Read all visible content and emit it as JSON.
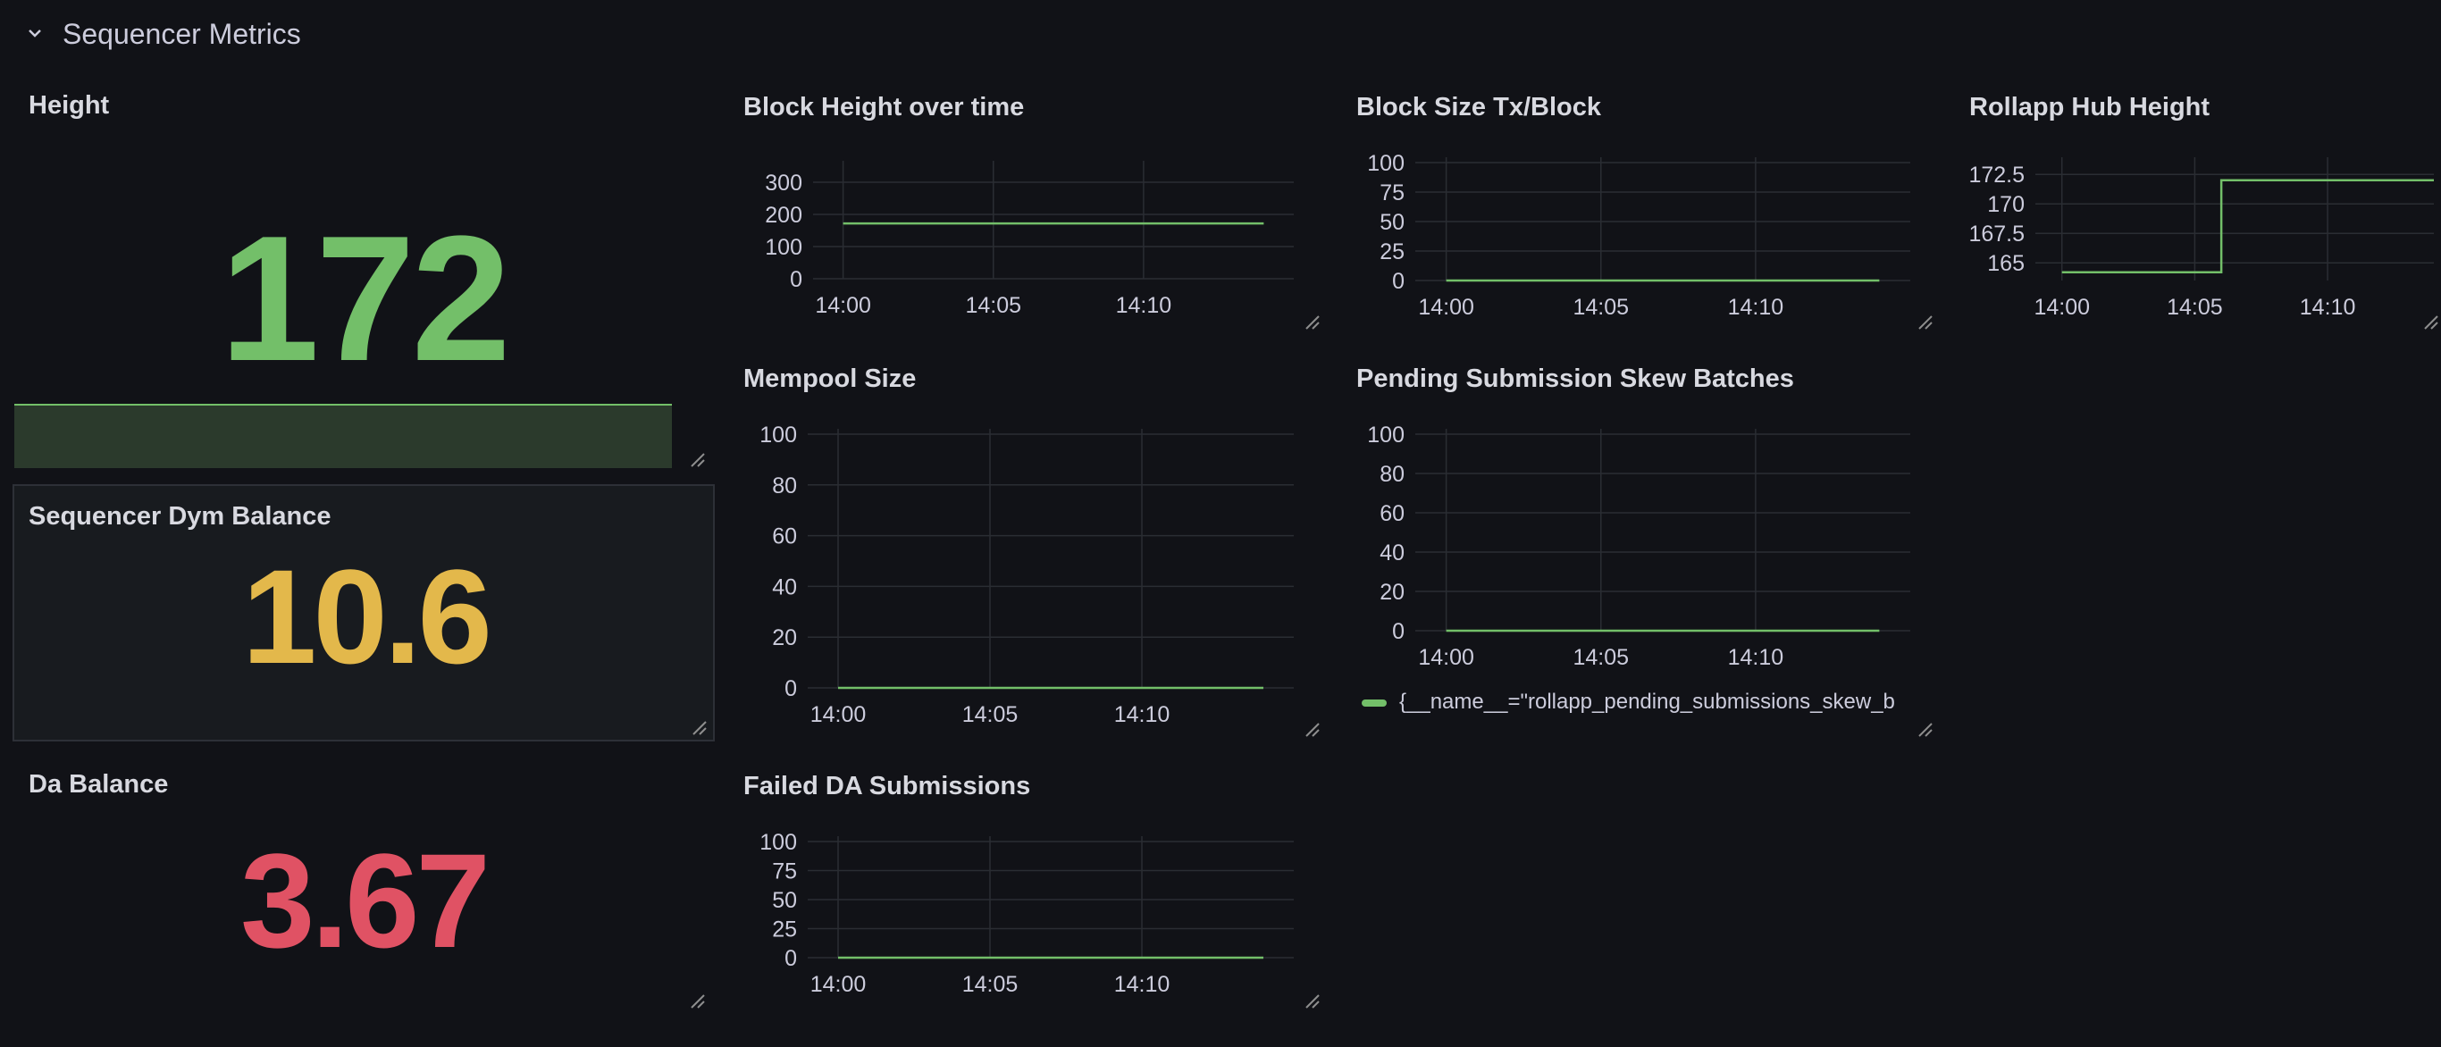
{
  "row": {
    "title": "Sequencer Metrics",
    "chevron_icon": "chevron-down-icon"
  },
  "colors": {
    "background": "#111217",
    "green": "#73bf69",
    "stat_green": "#73bf69",
    "yellow": "#e3b84b",
    "red": "#e05264",
    "grid": "#2a2d33"
  },
  "panels": {
    "height": {
      "title": "Height",
      "value": "172"
    },
    "dym_balance": {
      "title": "Sequencer Dym Balance",
      "value": "10.6"
    },
    "da_balance": {
      "title": "Da Balance",
      "value": "3.67"
    },
    "block_height": {
      "title": "Block Height over time"
    },
    "block_size": {
      "title": "Block Size Tx/Block"
    },
    "hub_height": {
      "title": "Rollapp Hub Height"
    },
    "mempool": {
      "title": "Mempool Size"
    },
    "pending_skew": {
      "title": "Pending Submission Skew Batches",
      "legend": "{__name__=\"rollapp_pending_submissions_skew_b"
    },
    "failed_da": {
      "title": "Failed DA Submissions"
    }
  },
  "chart_data": [
    {
      "id": "block_height",
      "type": "line",
      "x": [
        "14:00",
        "14:05",
        "14:10",
        "14:14"
      ],
      "y_ticks": [
        "300",
        "200",
        "100",
        "0"
      ],
      "ylim": [
        0,
        350
      ],
      "series": [
        {
          "values": [
            172,
            172,
            172,
            172
          ]
        }
      ]
    },
    {
      "id": "block_size",
      "type": "line",
      "x": [
        "14:00",
        "14:05",
        "14:10",
        "14:14"
      ],
      "y_ticks": [
        "100",
        "75",
        "50",
        "25",
        "0"
      ],
      "ylim": [
        0,
        100
      ],
      "series": [
        {
          "values": [
            0,
            0,
            0,
            0
          ]
        }
      ]
    },
    {
      "id": "hub_height",
      "type": "line",
      "x": [
        "14:00",
        "14:05",
        "14:06",
        "14:06",
        "14:14"
      ],
      "y_ticks": [
        "172.5",
        "170",
        "167.5",
        "165"
      ],
      "ylim": [
        163.5,
        173.5
      ],
      "series": [
        {
          "values": [
            164.2,
            164.2,
            164.2,
            172,
            172
          ]
        }
      ]
    },
    {
      "id": "mempool",
      "type": "line",
      "x": [
        "14:00",
        "14:05",
        "14:10",
        "14:14"
      ],
      "y_ticks": [
        "100",
        "80",
        "60",
        "40",
        "20",
        "0"
      ],
      "ylim": [
        0,
        100
      ],
      "series": [
        {
          "values": [
            0,
            0,
            0,
            0
          ]
        }
      ]
    },
    {
      "id": "pending_skew",
      "type": "line",
      "x": [
        "14:00",
        "14:05",
        "14:10",
        "14:14"
      ],
      "y_ticks": [
        "100",
        "80",
        "60",
        "40",
        "20",
        "0"
      ],
      "ylim": [
        0,
        100
      ],
      "series": [
        {
          "values": [
            0,
            0,
            0,
            0
          ]
        }
      ]
    },
    {
      "id": "failed_da",
      "type": "line",
      "x": [
        "14:00",
        "14:05",
        "14:10",
        "14:14"
      ],
      "y_ticks": [
        "100",
        "75",
        "50",
        "25",
        "0"
      ],
      "ylim": [
        0,
        100
      ],
      "series": [
        {
          "values": [
            0,
            0,
            0,
            0
          ]
        }
      ]
    }
  ]
}
